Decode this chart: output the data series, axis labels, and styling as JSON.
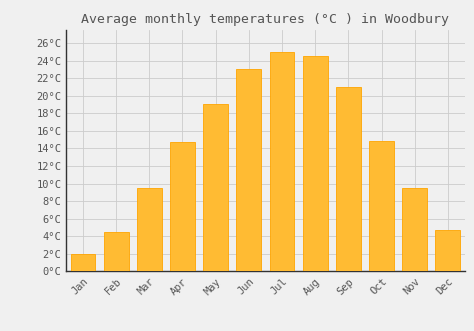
{
  "title": "Average monthly temperatures (°C ) in Woodbury",
  "months": [
    "Jan",
    "Feb",
    "Mar",
    "Apr",
    "May",
    "Jun",
    "Jul",
    "Aug",
    "Sep",
    "Oct",
    "Nov",
    "Dec"
  ],
  "values": [
    2.0,
    4.5,
    9.5,
    14.7,
    19.0,
    23.0,
    25.0,
    24.5,
    21.0,
    14.8,
    9.5,
    4.7
  ],
  "bar_color": "#FFBB33",
  "bar_edge_color": "#FFA500",
  "background_color": "#f0f0f0",
  "plot_bg_color": "#f0f0f0",
  "grid_color": "#cccccc",
  "ytick_values": [
    0,
    2,
    4,
    6,
    8,
    10,
    12,
    14,
    16,
    18,
    20,
    22,
    24,
    26
  ],
  "ylim": [
    0,
    27.5
  ],
  "title_fontsize": 9.5,
  "tick_fontsize": 7.5,
  "title_color": "#555555",
  "tick_color": "#555555",
  "left_spine_color": "#333333",
  "bottom_spine_color": "#333333"
}
